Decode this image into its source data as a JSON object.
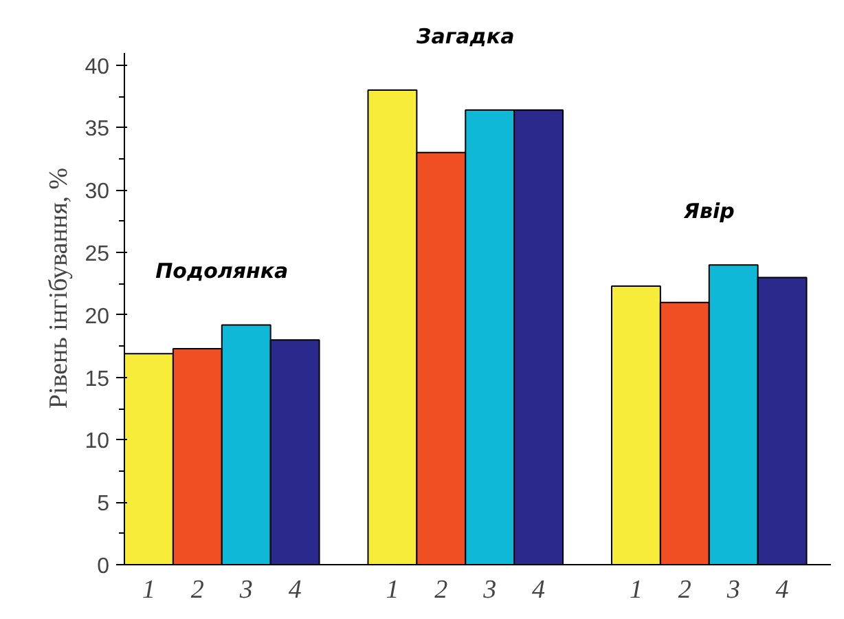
{
  "chart_data": {
    "type": "bar",
    "ylabel": "Рівень інгібування, %",
    "categories": [
      "1",
      "2",
      "3",
      "4",
      null,
      "1",
      "2",
      "3",
      "4",
      null,
      "1",
      "2",
      "3",
      "4"
    ],
    "values": [
      16.9,
      17.3,
      19.2,
      18.0,
      null,
      38.0,
      33.0,
      36.4,
      36.4,
      null,
      22.3,
      21.0,
      24.0,
      23.0
    ],
    "colors": [
      "#f7ec3a",
      "#f04e23",
      "#10b8d8",
      "#2b2a8c",
      null,
      "#f7ec3a",
      "#f04e23",
      "#10b8d8",
      "#2b2a8c",
      null,
      "#f7ec3a",
      "#f04e23",
      "#10b8d8",
      "#2b2a8c"
    ],
    "annotations": [
      "Подолянка",
      "Загадка",
      "Явір"
    ],
    "ylim": [
      0,
      41
    ],
    "yticks": [
      0,
      5,
      10,
      15,
      20,
      25,
      30,
      35,
      40
    ],
    "grid": false
  }
}
